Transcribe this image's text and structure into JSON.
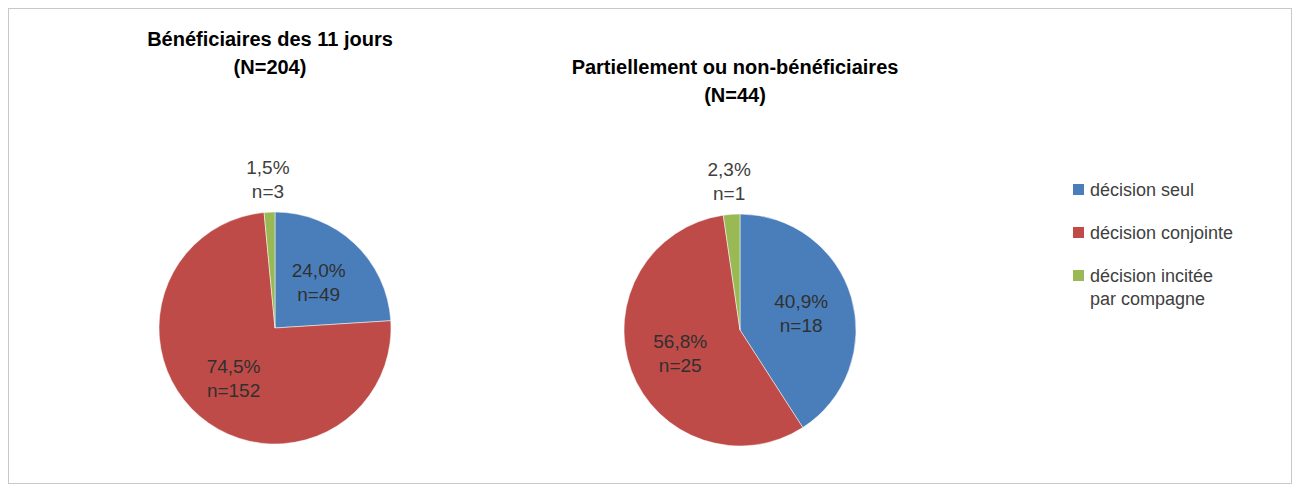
{
  "chart_data": [
    {
      "type": "pie",
      "title": "Bénéficiaires des 11 jours",
      "subtitle": "(N=204)",
      "categories": [
        "décision seul",
        "décision conjointe",
        "décision incitée par compagne"
      ],
      "values": [
        24.0,
        74.5,
        1.5
      ],
      "value_labels": [
        "24,0%",
        "74,5%",
        "1,5%"
      ],
      "count_labels": [
        "n=49",
        "n=152",
        "n=3"
      ],
      "colors": [
        "#4a7ebb",
        "#be4b48",
        "#98b954"
      ]
    },
    {
      "type": "pie",
      "title": "Partiellement ou non-bénéficiaires",
      "subtitle": "(N=44)",
      "categories": [
        "décision seul",
        "décision conjointe",
        "décision incitée par compagne"
      ],
      "values": [
        40.9,
        56.8,
        2.3
      ],
      "value_labels": [
        "40,9%",
        "56,8%",
        "2,3%"
      ],
      "count_labels": [
        "n=18",
        "n=25",
        "n=1"
      ],
      "colors": [
        "#4a7ebb",
        "#be4b48",
        "#98b954"
      ],
      "legend": "right"
    }
  ]
}
